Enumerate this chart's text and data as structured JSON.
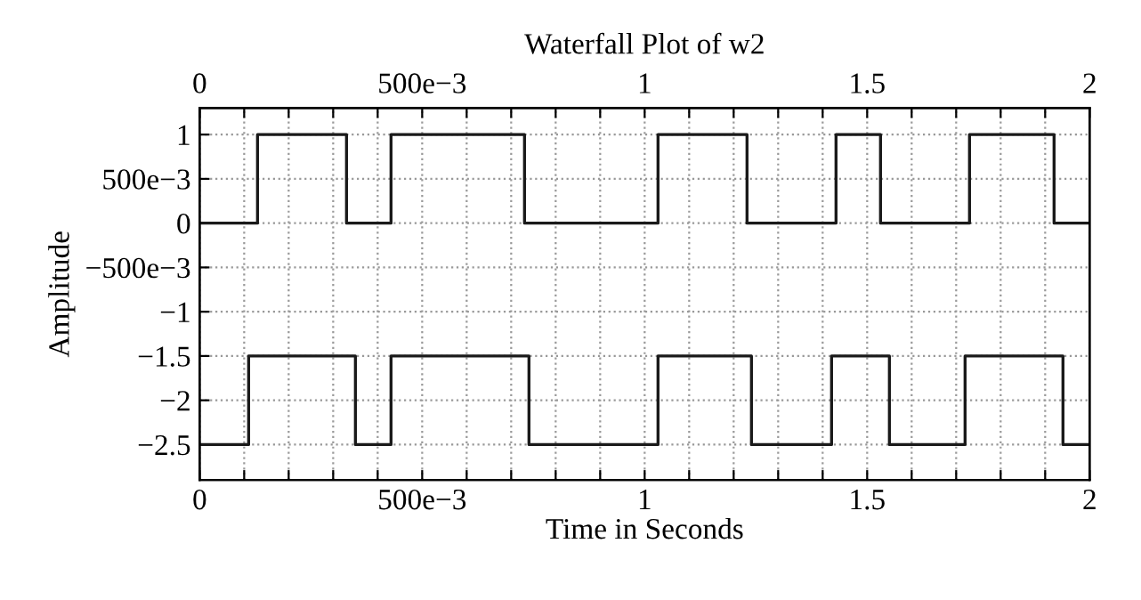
{
  "chart_data": {
    "type": "step",
    "title": "Waterfall Plot of w2",
    "xlabel": "Time in Seconds",
    "ylabel": "Amplitude",
    "series": [
      {
        "color": "#1a1a1a",
        "x": [
          0,
          0.13,
          0.33,
          0.43,
          0.73,
          1.03,
          1.23,
          1.43,
          1.53,
          1.73,
          1.92,
          2
        ],
        "values": [
          0,
          1,
          0,
          1,
          0,
          1,
          0,
          1,
          0,
          1,
          0,
          0
        ]
      },
      {
        "color": "#1a1a1a",
        "x": [
          0,
          0.11,
          0.35,
          0.43,
          0.74,
          1.03,
          1.24,
          1.42,
          1.55,
          1.72,
          1.94,
          2
        ],
        "values": [
          -2.5,
          -1.5,
          -2.5,
          -1.5,
          -2.5,
          -1.5,
          -2.5,
          -1.5,
          -2.5,
          -1.5,
          -2.5,
          -2.5
        ]
      }
    ],
    "xlim": [
      0,
      2
    ],
    "ylim": [
      -2.9,
      1.3
    ],
    "x2lim": [
      0,
      2
    ],
    "xticks": [
      0,
      {
        "value": 0.1,
        "label": null
      },
      {
        "value": 0.2,
        "label": null
      },
      {
        "value": 0.3,
        "label": null
      },
      {
        "value": 0.4,
        "label": null
      },
      {
        "value": 0.5,
        "label": "500e−3"
      },
      {
        "value": 0.6,
        "label": null
      },
      {
        "value": 0.7,
        "label": null
      },
      {
        "value": 0.8,
        "label": null
      },
      {
        "value": 0.9,
        "label": null
      },
      1,
      {
        "value": 1.1,
        "label": null
      },
      {
        "value": 1.2,
        "label": null
      },
      {
        "value": 1.3,
        "label": null
      },
      {
        "value": 1.4,
        "label": null
      },
      1.5,
      {
        "value": 1.6,
        "label": null
      },
      {
        "value": 1.7,
        "label": null
      },
      {
        "value": 1.8,
        "label": null
      },
      {
        "value": 1.9,
        "label": null
      },
      2
    ],
    "x2ticks": [
      0,
      {
        "value": 0.1,
        "label": null
      },
      {
        "value": 0.2,
        "label": null
      },
      {
        "value": 0.3,
        "label": null
      },
      {
        "value": 0.4,
        "label": null
      },
      {
        "value": 0.5,
        "label": "500e−3"
      },
      {
        "value": 0.6,
        "label": null
      },
      {
        "value": 0.7,
        "label": null
      },
      {
        "value": 0.8,
        "label": null
      },
      {
        "value": 0.9,
        "label": null
      },
      1,
      {
        "value": 1.1,
        "label": null
      },
      {
        "value": 1.2,
        "label": null
      },
      {
        "value": 1.3,
        "label": null
      },
      {
        "value": 1.4,
        "label": null
      },
      1.5,
      {
        "value": 1.6,
        "label": null
      },
      {
        "value": 1.7,
        "label": null
      },
      {
        "value": 1.8,
        "label": null
      },
      {
        "value": 1.9,
        "label": null
      },
      2
    ],
    "yticks": [
      1,
      {
        "value": 0.5,
        "label": "500e−3"
      },
      0,
      {
        "value": -0.5,
        "label": "−500e−3"
      },
      {
        "value": -1,
        "label": "−1"
      },
      {
        "value": -1.5,
        "label": "−1.5"
      },
      {
        "value": -2,
        "label": "−2"
      },
      {
        "value": -2.5,
        "label": "−2.5"
      }
    ],
    "grid": true,
    "legend": false,
    "line_style": "solid",
    "marker": "none"
  }
}
